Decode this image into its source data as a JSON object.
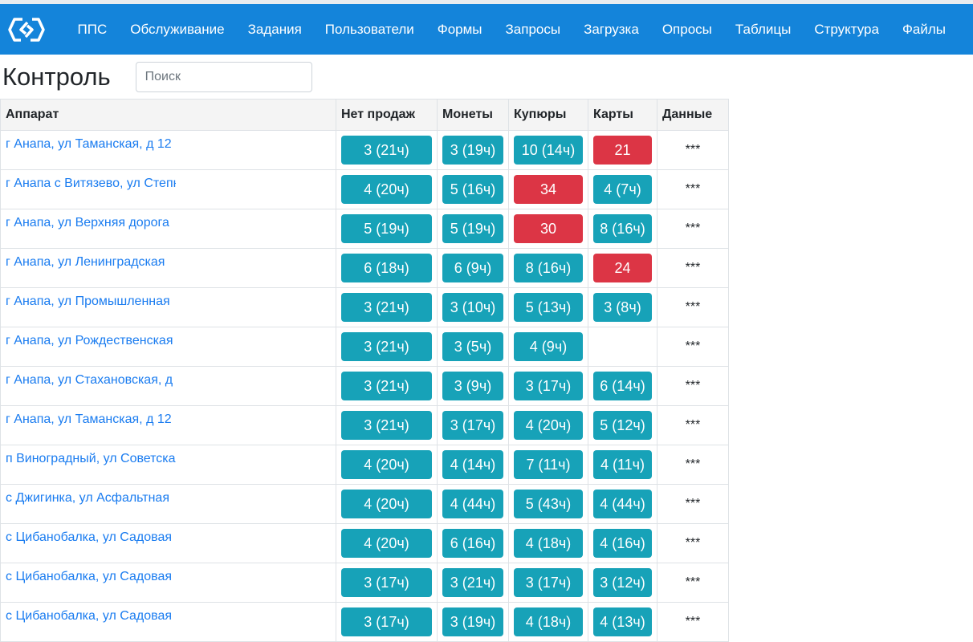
{
  "nav": {
    "logo": "logo-icon",
    "items": [
      "ППС",
      "Обслуживание",
      "Задания",
      "Пользователи",
      "Формы",
      "Запросы",
      "Загрузка",
      "Опросы",
      "Таблицы",
      "Структура",
      "Файлы"
    ]
  },
  "page": {
    "title": "Контроль",
    "search_placeholder": "Поиск"
  },
  "colors": {
    "nav": "#1484da",
    "ok": "#17a2b8",
    "alert": "#dc3545",
    "link": "#1a7cf0"
  },
  "table": {
    "headers": [
      "Аппарат",
      "Нет продаж",
      "Монеты",
      "Купюры",
      "Карты",
      "Данные"
    ],
    "rows": [
      {
        "addr": "г Анапа, ул Таманская, д 12",
        "cells": [
          [
            "3 (21ч)",
            "ok"
          ],
          [
            "3 (19ч)",
            "ok"
          ],
          [
            "10 (14ч)",
            "ok"
          ],
          [
            "21",
            "alert"
          ]
        ],
        "data": "***"
      },
      {
        "addr": "г Анапа с Витязево, ул Степная",
        "cells": [
          [
            "4 (20ч)",
            "ok"
          ],
          [
            "5 (16ч)",
            "ok"
          ],
          [
            "34",
            "alert"
          ],
          [
            "4 (7ч)",
            "ok"
          ]
        ],
        "data": "***"
      },
      {
        "addr": "г Анапа, ул Верхняя дорога",
        "cells": [
          [
            "5 (19ч)",
            "ok"
          ],
          [
            "5 (19ч)",
            "ok"
          ],
          [
            "30",
            "alert"
          ],
          [
            "8 (16ч)",
            "ok"
          ]
        ],
        "data": "***"
      },
      {
        "addr": "г Анапа, ул Ленинградская",
        "cells": [
          [
            "6 (18ч)",
            "ok"
          ],
          [
            "6 (9ч)",
            "ok"
          ],
          [
            "8 (16ч)",
            "ok"
          ],
          [
            "24",
            "alert"
          ]
        ],
        "data": "***"
      },
      {
        "addr": "г Анапа, ул Промышленная",
        "cells": [
          [
            "3 (21ч)",
            "ok"
          ],
          [
            "3 (10ч)",
            "ok"
          ],
          [
            "5 (13ч)",
            "ok"
          ],
          [
            "3 (8ч)",
            "ok"
          ]
        ],
        "data": "***"
      },
      {
        "addr": "г Анапа, ул Рождественская",
        "cells": [
          [
            "3 (21ч)",
            "ok"
          ],
          [
            "3 (5ч)",
            "ok"
          ],
          [
            "4 (9ч)",
            "ok"
          ],
          null
        ],
        "data": "***"
      },
      {
        "addr": "г Анапа, ул Стахановская, д",
        "cells": [
          [
            "3 (21ч)",
            "ok"
          ],
          [
            "3 (9ч)",
            "ok"
          ],
          [
            "3 (17ч)",
            "ok"
          ],
          [
            "6 (14ч)",
            "ok"
          ]
        ],
        "data": "***"
      },
      {
        "addr": "г Анапа, ул Таманская, д 12",
        "cells": [
          [
            "3 (21ч)",
            "ok"
          ],
          [
            "3 (17ч)",
            "ok"
          ],
          [
            "4 (20ч)",
            "ok"
          ],
          [
            "5 (12ч)",
            "ok"
          ]
        ],
        "data": "***"
      },
      {
        "addr": "п Виноградный, ул Советская",
        "cells": [
          [
            "4 (20ч)",
            "ok"
          ],
          [
            "4 (14ч)",
            "ok"
          ],
          [
            "7 (11ч)",
            "ok"
          ],
          [
            "4 (11ч)",
            "ok"
          ]
        ],
        "data": "***"
      },
      {
        "addr": "с Джигинка, ул Асфальтная",
        "cells": [
          [
            "4 (20ч)",
            "ok"
          ],
          [
            "4 (44ч)",
            "ok"
          ],
          [
            "5 (43ч)",
            "ok"
          ],
          [
            "4 (44ч)",
            "ok"
          ]
        ],
        "data": "***"
      },
      {
        "addr": "с Цибанобалка, ул Садовая",
        "cells": [
          [
            "4 (20ч)",
            "ok"
          ],
          [
            "6 (16ч)",
            "ok"
          ],
          [
            "4 (18ч)",
            "ok"
          ],
          [
            "4 (16ч)",
            "ok"
          ]
        ],
        "data": "***"
      },
      {
        "addr": "с Цибанобалка, ул Садовая",
        "cells": [
          [
            "3 (17ч)",
            "ok"
          ],
          [
            "3 (21ч)",
            "ok"
          ],
          [
            "3 (17ч)",
            "ok"
          ],
          [
            "3 (12ч)",
            "ok"
          ]
        ],
        "data": "***"
      },
      {
        "addr": "с Цибанобалка, ул Садовая",
        "cells": [
          [
            "3 (17ч)",
            "ok"
          ],
          [
            "3 (19ч)",
            "ok"
          ],
          [
            "4 (18ч)",
            "ok"
          ],
          [
            "4 (13ч)",
            "ok"
          ]
        ],
        "data": "***"
      }
    ]
  }
}
